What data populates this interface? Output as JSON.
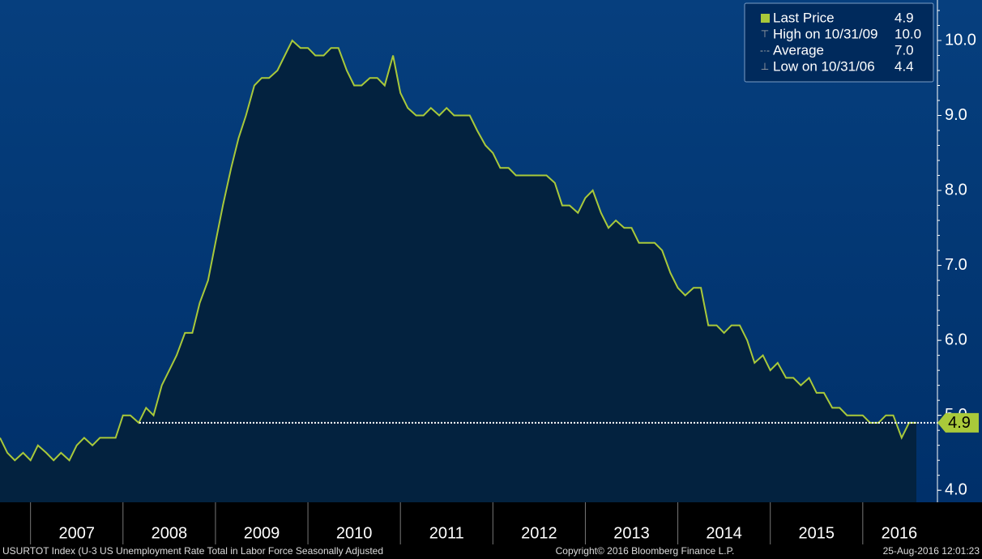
{
  "chart_data": {
    "type": "area",
    "series": [
      {
        "name": "Last Price",
        "color": "#a9c93a",
        "x": [
          2006.67,
          2006.75,
          2006.83,
          2006.92,
          2007.0,
          2007.08,
          2007.17,
          2007.25,
          2007.33,
          2007.42,
          2007.5,
          2007.58,
          2007.67,
          2007.75,
          2007.83,
          2007.92,
          2008.0,
          2008.08,
          2008.17,
          2008.25,
          2008.33,
          2008.42,
          2008.5,
          2008.58,
          2008.67,
          2008.75,
          2008.83,
          2008.92,
          2009.0,
          2009.08,
          2009.17,
          2009.25,
          2009.33,
          2009.42,
          2009.5,
          2009.58,
          2009.67,
          2009.75,
          2009.83,
          2009.92,
          2010.0,
          2010.08,
          2010.17,
          2010.25,
          2010.33,
          2010.42,
          2010.5,
          2010.58,
          2010.67,
          2010.75,
          2010.83,
          2010.92,
          2011.0,
          2011.08,
          2011.17,
          2011.25,
          2011.33,
          2011.42,
          2011.5,
          2011.58,
          2011.67,
          2011.75,
          2011.83,
          2011.92,
          2012.0,
          2012.08,
          2012.17,
          2012.25,
          2012.33,
          2012.42,
          2012.5,
          2012.58,
          2012.67,
          2012.75,
          2012.83,
          2012.92,
          2013.0,
          2013.08,
          2013.17,
          2013.25,
          2013.33,
          2013.42,
          2013.5,
          2013.58,
          2013.67,
          2013.75,
          2013.83,
          2013.92,
          2014.0,
          2014.08,
          2014.17,
          2014.25,
          2014.33,
          2014.42,
          2014.5,
          2014.58,
          2014.67,
          2014.75,
          2014.83,
          2014.92,
          2015.0,
          2015.08,
          2015.17,
          2015.25,
          2015.33,
          2015.42,
          2015.5,
          2015.58,
          2015.67,
          2015.75,
          2015.83,
          2015.92,
          2016.0,
          2016.08,
          2016.17,
          2016.25,
          2016.33,
          2016.42,
          2016.5,
          2016.58
        ],
        "values": [
          4.7,
          4.5,
          4.4,
          4.5,
          4.4,
          4.6,
          4.5,
          4.4,
          4.5,
          4.4,
          4.6,
          4.7,
          4.6,
          4.7,
          4.7,
          4.7,
          5.0,
          5.0,
          4.9,
          5.1,
          5.0,
          5.4,
          5.6,
          5.8,
          6.1,
          6.1,
          6.5,
          6.8,
          7.3,
          7.8,
          8.3,
          8.7,
          9.0,
          9.4,
          9.5,
          9.5,
          9.6,
          9.8,
          10.0,
          9.9,
          9.9,
          9.8,
          9.8,
          9.9,
          9.9,
          9.6,
          9.4,
          9.4,
          9.5,
          9.5,
          9.4,
          9.8,
          9.3,
          9.1,
          9.0,
          9.0,
          9.1,
          9.0,
          9.1,
          9.0,
          9.0,
          9.0,
          8.8,
          8.6,
          8.5,
          8.3,
          8.3,
          8.2,
          8.2,
          8.2,
          8.2,
          8.2,
          8.1,
          7.8,
          7.8,
          7.7,
          7.9,
          8.0,
          7.7,
          7.5,
          7.6,
          7.5,
          7.5,
          7.3,
          7.3,
          7.3,
          7.2,
          6.9,
          6.7,
          6.6,
          6.7,
          6.7,
          6.2,
          6.2,
          6.1,
          6.2,
          6.2,
          6.0,
          5.7,
          5.8,
          5.6,
          5.7,
          5.5,
          5.5,
          5.4,
          5.5,
          5.3,
          5.3,
          5.1,
          5.1,
          5.0,
          5.0,
          5.0,
          4.9,
          4.9,
          5.0,
          5.0,
          4.7,
          4.9,
          4.9
        ]
      }
    ],
    "last_value": 4.9,
    "xlim": [
      2006.67,
      2016.79
    ],
    "xticks": [
      {
        "value": 2007,
        "label": "2007"
      },
      {
        "value": 2008,
        "label": "2008"
      },
      {
        "value": 2009,
        "label": "2009"
      },
      {
        "value": 2010,
        "label": "2010"
      },
      {
        "value": 2011,
        "label": "2011"
      },
      {
        "value": 2012,
        "label": "2012"
      },
      {
        "value": 2013,
        "label": "2013"
      },
      {
        "value": 2014,
        "label": "2014"
      },
      {
        "value": 2015,
        "label": "2015"
      },
      {
        "value": 2016,
        "label": "2016"
      }
    ],
    "ylim": [
      3.84,
      10.54
    ],
    "yticks": [
      {
        "value": 4,
        "label": "4.0"
      },
      {
        "value": 5,
        "label": "5.0"
      },
      {
        "value": 6,
        "label": "6.0"
      },
      {
        "value": 7,
        "label": "7.0"
      },
      {
        "value": 8,
        "label": "8.0"
      },
      {
        "value": 9,
        "label": "9.0"
      },
      {
        "value": 10,
        "label": "10.0"
      }
    ],
    "legend": [
      {
        "label": "Last Price",
        "value": "4.9"
      },
      {
        "label": "High on 10/31/09",
        "value": "10.0"
      },
      {
        "label": "Average",
        "value": "7.0"
      },
      {
        "label": "Low on 10/31/06",
        "value": "4.4"
      }
    ],
    "footer": {
      "left": "USURTOT Index (U-3 US Unemployment Rate Total in Labor Force Seasonally Adjusted",
      "center": "Copyright© 2016 Bloomberg Finance L.P.",
      "right": "25-Aug-2016 12:01:23"
    }
  }
}
